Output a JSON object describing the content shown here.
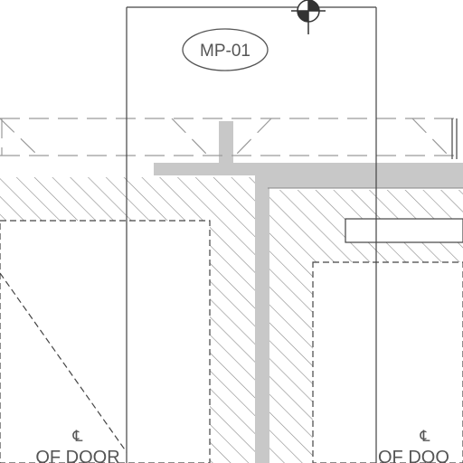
{
  "drawing": {
    "tag_label": "MP-01",
    "centerline_symbol": "℄",
    "door_label_left": "OF DOOR",
    "door_label_right": "OF DOO",
    "marker_icon": "section-target-icon",
    "colors": {
      "line": "#444444",
      "hatch": "#8a8a8a",
      "fill": "#c8c8c8",
      "dash": "#9a9a9a",
      "background": "#ffffff"
    }
  }
}
